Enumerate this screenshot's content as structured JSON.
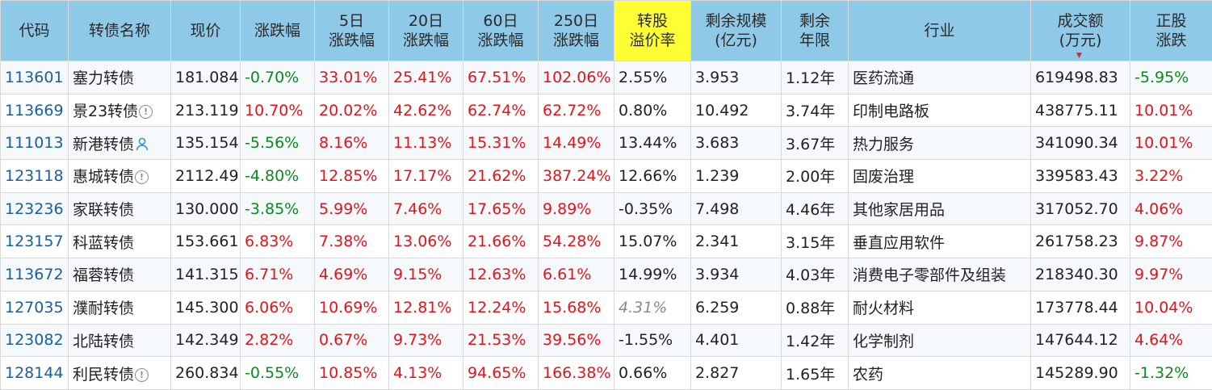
{
  "headers": {
    "code": "代码",
    "name": "转债名称",
    "price": "现价",
    "change": "涨跌幅",
    "d5": [
      "5日",
      "涨跌幅"
    ],
    "d20": [
      "20日",
      "涨跌幅"
    ],
    "d60": [
      "60日",
      "涨跌幅"
    ],
    "d250": [
      "250日",
      "涨跌幅"
    ],
    "premium": [
      "转股",
      "溢价率"
    ],
    "scale": [
      "剩余规模",
      "(亿元)"
    ],
    "term": [
      "剩余",
      "年限"
    ],
    "industry": "行业",
    "volume": [
      "成交额",
      "(万元)"
    ],
    "stock_change": [
      "正股",
      "涨跌"
    ]
  },
  "colors": {
    "header_bg": "#8fc9e8",
    "premium_header_bg": "#ffff33",
    "up": "#e0151b",
    "down": "#0a8a1e",
    "code_link": "#1b5e9c"
  },
  "rows": [
    {
      "code": "113601",
      "name": "塞力转债",
      "icon": "",
      "price": "181.084",
      "change": "-0.70%",
      "d5": "33.01%",
      "d20": "25.41%",
      "d60": "67.51%",
      "d250": "102.06%",
      "premium": "2.55%",
      "premium_italic": false,
      "scale": "3.953",
      "term": "1.12年",
      "industry": "医药流通",
      "volume": "619498.83",
      "stock_change": "-5.95%"
    },
    {
      "code": "113669",
      "name": "景23转债",
      "icon": "info-icon",
      "price": "213.119",
      "change": "10.70%",
      "d5": "20.02%",
      "d20": "42.62%",
      "d60": "62.74%",
      "d250": "62.72%",
      "premium": "0.80%",
      "premium_italic": false,
      "scale": "10.492",
      "term": "3.74年",
      "industry": "印制电路板",
      "volume": "438775.11",
      "stock_change": "10.01%"
    },
    {
      "code": "111013",
      "name": "新港转债",
      "icon": "user-icon",
      "price": "135.154",
      "change": "-5.56%",
      "d5": "8.16%",
      "d20": "11.13%",
      "d60": "15.31%",
      "d250": "14.49%",
      "premium": "13.44%",
      "premium_italic": false,
      "scale": "3.683",
      "term": "3.67年",
      "industry": "热力服务",
      "volume": "341090.34",
      "stock_change": "10.01%"
    },
    {
      "code": "123118",
      "name": "惠城转债",
      "icon": "info-icon",
      "price": "2112.49",
      "change": "-4.80%",
      "d5": "12.85%",
      "d20": "17.17%",
      "d60": "21.62%",
      "d250": "387.24%",
      "premium": "12.66%",
      "premium_italic": false,
      "scale": "1.239",
      "term": "2.00年",
      "industry": "固废治理",
      "volume": "339583.43",
      "stock_change": "3.22%"
    },
    {
      "code": "123236",
      "name": "家联转债",
      "icon": "",
      "price": "130.000",
      "change": "-3.85%",
      "d5": "5.99%",
      "d20": "7.46%",
      "d60": "17.65%",
      "d250": "9.89%",
      "premium": "-0.35%",
      "premium_italic": false,
      "scale": "7.498",
      "term": "4.46年",
      "industry": "其他家居用品",
      "volume": "317052.70",
      "stock_change": "4.06%"
    },
    {
      "code": "123157",
      "name": "科蓝转债",
      "icon": "",
      "price": "153.661",
      "change": "6.83%",
      "d5": "7.38%",
      "d20": "13.06%",
      "d60": "21.66%",
      "d250": "54.28%",
      "premium": "15.07%",
      "premium_italic": false,
      "scale": "2.341",
      "term": "3.15年",
      "industry": "垂直应用软件",
      "volume": "261758.23",
      "stock_change": "9.87%"
    },
    {
      "code": "113672",
      "name": "福蓉转债",
      "icon": "",
      "price": "141.315",
      "change": "6.71%",
      "d5": "4.69%",
      "d20": "9.15%",
      "d60": "12.63%",
      "d250": "6.61%",
      "premium": "14.99%",
      "premium_italic": false,
      "scale": "3.934",
      "term": "4.03年",
      "industry": "消费电子零部件及组装",
      "volume": "218340.30",
      "stock_change": "9.97%"
    },
    {
      "code": "127035",
      "name": "濮耐转债",
      "icon": "",
      "price": "145.300",
      "change": "6.06%",
      "d5": "10.69%",
      "d20": "12.81%",
      "d60": "12.24%",
      "d250": "15.68%",
      "premium": "4.31%",
      "premium_italic": true,
      "scale": "6.259",
      "term": "0.88年",
      "industry": "耐火材料",
      "volume": "173778.44",
      "stock_change": "10.04%"
    },
    {
      "code": "123082",
      "name": "北陆转债",
      "icon": "",
      "price": "142.349",
      "change": "2.82%",
      "d5": "0.67%",
      "d20": "9.73%",
      "d60": "21.53%",
      "d250": "39.56%",
      "premium": "-1.55%",
      "premium_italic": false,
      "scale": "4.401",
      "term": "1.42年",
      "industry": "化学制剂",
      "volume": "147644.12",
      "stock_change": "4.64%"
    },
    {
      "code": "128144",
      "name": "利民转债",
      "icon": "info-icon",
      "price": "260.834",
      "change": "-0.55%",
      "d5": "10.85%",
      "d20": "4.13%",
      "d60": "94.65%",
      "d250": "166.38%",
      "premium": "0.66%",
      "premium_italic": false,
      "scale": "2.827",
      "term": "1.65年",
      "industry": "农药",
      "volume": "145289.90",
      "stock_change": "-1.32%"
    }
  ]
}
